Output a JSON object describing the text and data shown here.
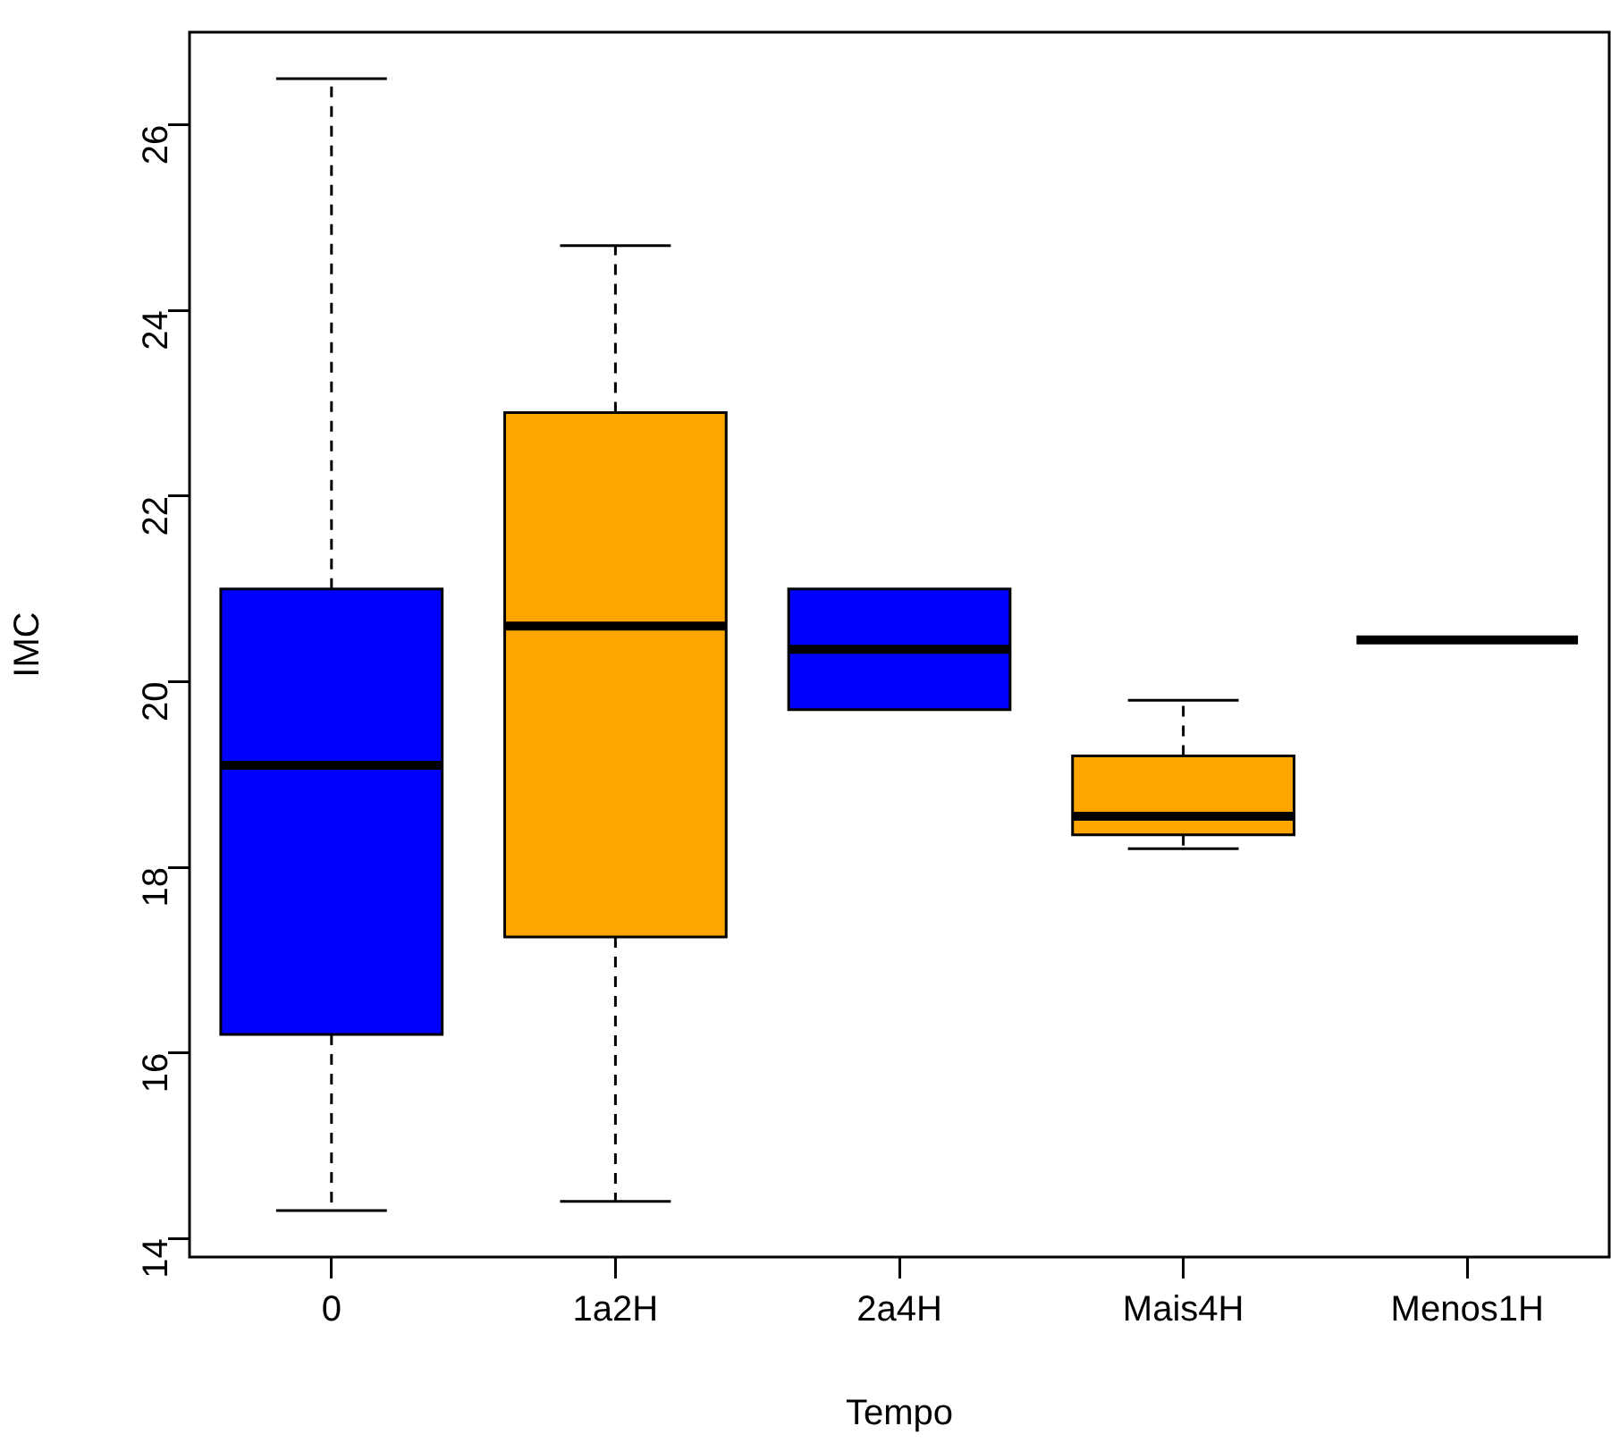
{
  "chart_data": {
    "type": "box",
    "xlabel": "Tempo",
    "ylabel": "IMC",
    "categories": [
      "0",
      "1a2H",
      "2a4H",
      "Mais4H",
      "Menos1H"
    ],
    "colors": [
      "#0000ff",
      "#ffa500",
      "#0000ff",
      "#ffa500",
      "#000000"
    ],
    "boxes": [
      {
        "low": 14.3,
        "q1": 16.2,
        "median": 19.1,
        "q3": 21.0,
        "high": 26.5
      },
      {
        "low": 14.4,
        "q1": 17.25,
        "median": 20.6,
        "q3": 22.9,
        "high": 24.7
      },
      {
        "low": 19.7,
        "q1": 19.7,
        "median": 20.35,
        "q3": 21.0,
        "high": 21.0
      },
      {
        "low": 18.2,
        "q1": 18.35,
        "median": 18.55,
        "q3": 19.2,
        "high": 19.8
      },
      {
        "low": 20.45,
        "q1": 20.45,
        "median": 20.45,
        "q3": 20.45,
        "high": 20.45
      }
    ],
    "ylim": [
      13.8,
      27.0
    ],
    "yticks": [
      14,
      16,
      18,
      20,
      22,
      24,
      26
    ]
  }
}
